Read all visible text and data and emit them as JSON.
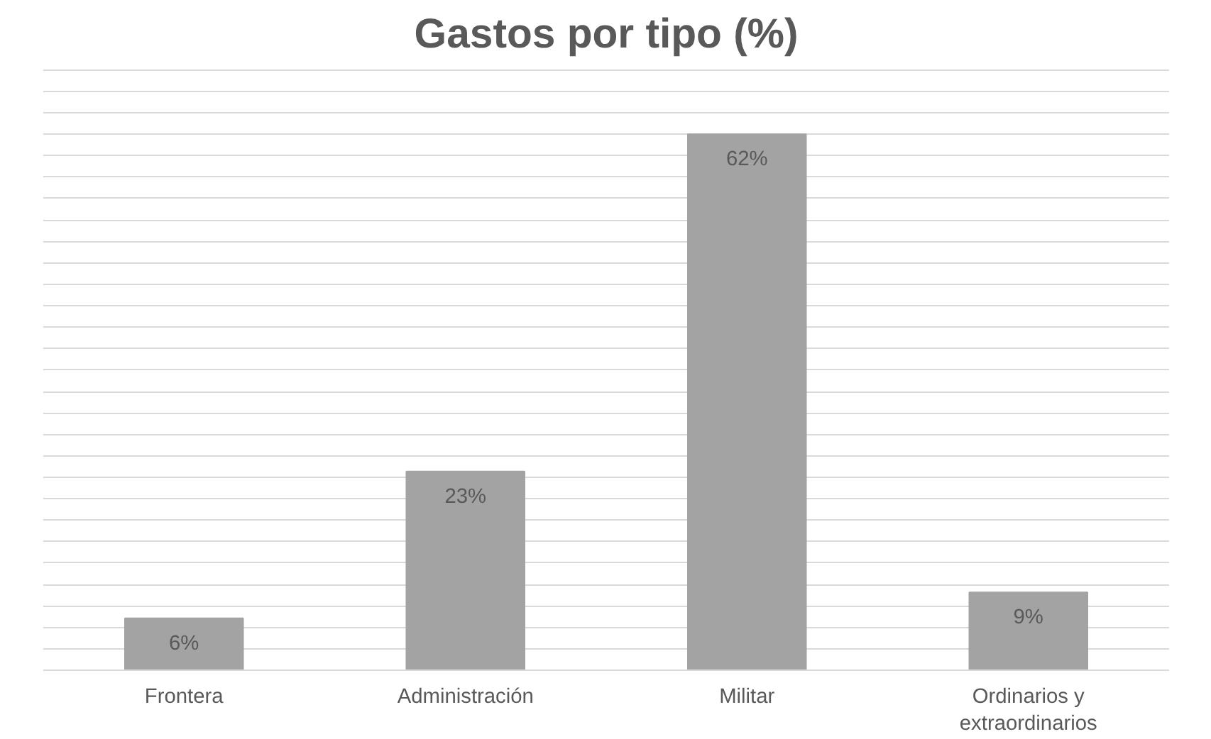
{
  "chart_data": {
    "type": "bar",
    "title": "Gastos por tipo (%)",
    "categories": [
      "Frontera",
      "Administración",
      "Militar",
      "Ordinarios y extraordinarios"
    ],
    "values": [
      6,
      23,
      62,
      9
    ],
    "value_labels": [
      "6%",
      "23%",
      "62%",
      "9%"
    ],
    "color": "#a3a3a3",
    "grid": "y",
    "tick_labels": "x"
  }
}
